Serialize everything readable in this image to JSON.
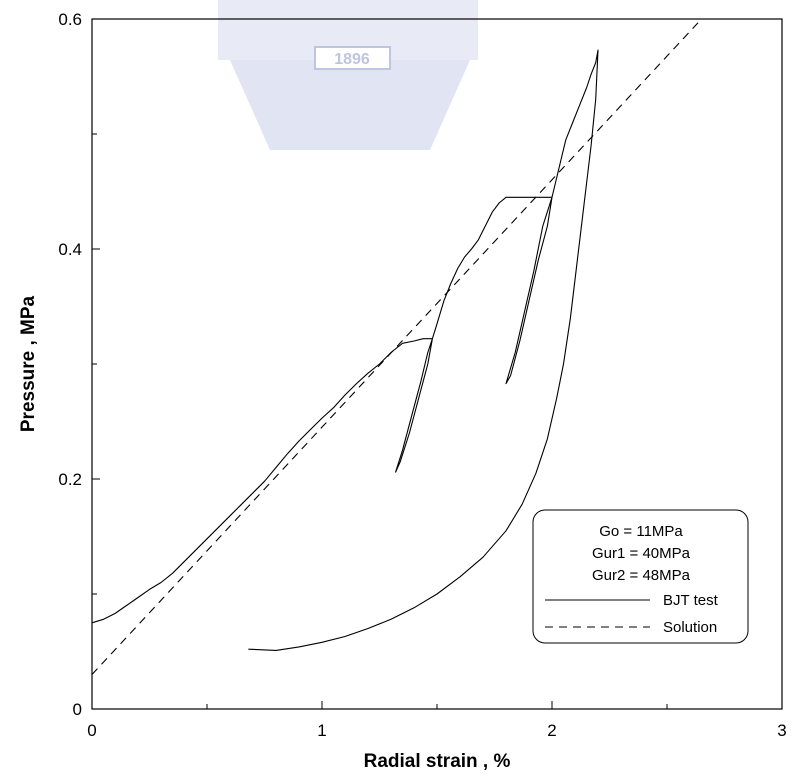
{
  "chart_data": {
    "type": "line",
    "xlabel": "Radial strain , %",
    "ylabel": "Pressure , MPa",
    "xlim": [
      0,
      3
    ],
    "ylim": [
      0,
      0.6
    ],
    "x_ticks": [
      "0",
      "1",
      "2",
      "3"
    ],
    "y_ticks": [
      "0",
      "0.2",
      "0.4",
      "0.6"
    ],
    "grid": false,
    "legend_position": "bottom-right",
    "legend": {
      "parameters": [
        "Go = 11MPa",
        "Gur1 = 40MPa",
        "Gur2 = 48MPa"
      ],
      "entries": [
        {
          "label": "BJT test",
          "style": "solid"
        },
        {
          "label": "Solution",
          "style": "dashed"
        }
      ]
    },
    "series": [
      {
        "name": "BJT test",
        "style": "solid",
        "color": "#000000",
        "x": [
          0,
          0.05,
          0.1,
          0.15,
          0.2,
          0.25,
          0.3,
          0.35,
          0.4,
          0.45,
          0.5,
          0.55,
          0.6,
          0.65,
          0.7,
          0.75,
          0.8,
          0.85,
          0.9,
          0.95,
          1.0,
          1.05,
          1.1,
          1.15,
          1.2,
          1.25,
          1.3,
          1.35,
          1.4,
          1.44,
          1.48,
          1.46,
          1.42,
          1.38,
          1.34,
          1.32,
          1.35,
          1.39,
          1.43,
          1.46,
          1.48,
          1.5,
          1.53,
          1.56,
          1.59,
          1.62,
          1.65,
          1.68,
          1.71,
          1.74,
          1.77,
          1.8,
          1.85,
          1.9,
          2.0,
          1.98,
          1.94,
          1.9,
          1.86,
          1.82,
          1.8,
          1.84,
          1.88,
          1.92,
          1.96,
          2.0,
          2.03,
          2.06,
          2.09,
          2.12,
          2.15,
          2.17,
          2.19,
          2.2,
          2.19,
          2.17,
          2.14,
          2.11,
          2.08,
          2.05,
          2.02,
          1.98,
          1.93,
          1.87,
          1.8,
          1.7,
          1.6,
          1.5,
          1.4,
          1.3,
          1.2,
          1.1,
          1.0,
          0.9,
          0.8,
          0.68
        ],
        "y": [
          0.075,
          0.078,
          0.083,
          0.09,
          0.097,
          0.104,
          0.11,
          0.118,
          0.128,
          0.138,
          0.148,
          0.158,
          0.168,
          0.178,
          0.188,
          0.198,
          0.21,
          0.222,
          0.233,
          0.243,
          0.253,
          0.262,
          0.273,
          0.283,
          0.292,
          0.3,
          0.31,
          0.318,
          0.32,
          0.322,
          0.322,
          0.3,
          0.27,
          0.24,
          0.215,
          0.206,
          0.225,
          0.255,
          0.285,
          0.31,
          0.322,
          0.335,
          0.355,
          0.37,
          0.383,
          0.393,
          0.4,
          0.408,
          0.42,
          0.432,
          0.44,
          0.445,
          0.445,
          0.445,
          0.445,
          0.42,
          0.39,
          0.355,
          0.32,
          0.29,
          0.283,
          0.31,
          0.345,
          0.38,
          0.42,
          0.445,
          0.47,
          0.495,
          0.51,
          0.525,
          0.54,
          0.552,
          0.562,
          0.573,
          0.53,
          0.49,
          0.44,
          0.39,
          0.34,
          0.3,
          0.27,
          0.235,
          0.205,
          0.178,
          0.155,
          0.132,
          0.115,
          0.1,
          0.088,
          0.078,
          0.07,
          0.063,
          0.058,
          0.054,
          0.051,
          0.052
        ]
      },
      {
        "name": "Solution",
        "style": "dashed",
        "color": "#000000",
        "x": [
          0,
          2.65
        ],
        "y": [
          0.03,
          0.6
        ]
      }
    ]
  }
}
